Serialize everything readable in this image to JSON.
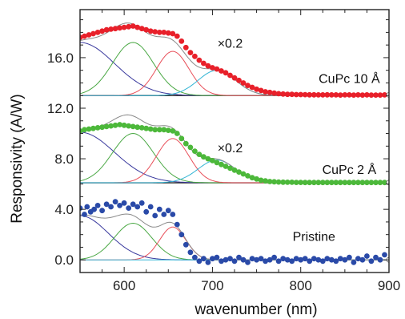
{
  "chart_data": {
    "type": "scatter",
    "xlabel": "wavenumber (nm)",
    "ylabel": "Responsivity (A/W)",
    "xlim": [
      550,
      900
    ],
    "ylim": [
      -1.0,
      19.8
    ],
    "x_ticks": [
      "600",
      "700",
      "800",
      "900"
    ],
    "x_tick_values": [
      600,
      700,
      800,
      900
    ],
    "y_ticks": [
      "0.0",
      "4.0",
      "8.0",
      "12.0",
      "16.0"
    ],
    "y_tick_values": [
      0,
      4,
      8,
      12,
      16
    ],
    "grid": false,
    "annotations": [
      {
        "text": "×0.2",
        "x": 720,
        "y": 16.8
      },
      {
        "text": "×0.2",
        "x": 720,
        "y": 8.5
      },
      {
        "text": "CuPc 10 Å",
        "x": 855,
        "y": 14.0
      },
      {
        "text": "CuPc 2 Å",
        "x": 855,
        "y": 6.8
      },
      {
        "text": "Pristine",
        "x": 815,
        "y": 1.5
      }
    ],
    "panels": [
      {
        "label": "CuPc 10 Å",
        "color": "#e8202a",
        "fit_color": "#8a8a8a",
        "baseline": 13.0,
        "points": [
          [
            550,
            17.6
          ],
          [
            555,
            17.7
          ],
          [
            560,
            17.8
          ],
          [
            565,
            17.9
          ],
          [
            570,
            18.0
          ],
          [
            575,
            18.1
          ],
          [
            580,
            18.2
          ],
          [
            585,
            18.25
          ],
          [
            590,
            18.3
          ],
          [
            595,
            18.35
          ],
          [
            600,
            18.4
          ],
          [
            605,
            18.45
          ],
          [
            610,
            18.5
          ],
          [
            615,
            18.4
          ],
          [
            620,
            18.3
          ],
          [
            625,
            18.2
          ],
          [
            630,
            18.1
          ],
          [
            635,
            18.05
          ],
          [
            640,
            18.0
          ],
          [
            645,
            18.0
          ],
          [
            650,
            17.95
          ],
          [
            655,
            17.9
          ],
          [
            660,
            17.7
          ],
          [
            665,
            17.3
          ],
          [
            670,
            16.8
          ],
          [
            675,
            16.4
          ],
          [
            680,
            16.1
          ],
          [
            685,
            15.8
          ],
          [
            690,
            15.55
          ],
          [
            695,
            15.35
          ],
          [
            700,
            15.2
          ],
          [
            705,
            15.1
          ],
          [
            710,
            14.95
          ],
          [
            715,
            14.8
          ],
          [
            720,
            14.6
          ],
          [
            725,
            14.4
          ],
          [
            730,
            14.2
          ],
          [
            735,
            14.0
          ],
          [
            740,
            13.8
          ],
          [
            745,
            13.65
          ],
          [
            750,
            13.5
          ],
          [
            755,
            13.4
          ],
          [
            760,
            13.3
          ],
          [
            765,
            13.25
          ],
          [
            770,
            13.2
          ],
          [
            775,
            13.15
          ],
          [
            780,
            13.12
          ],
          [
            785,
            13.1
          ],
          [
            790,
            13.1
          ],
          [
            795,
            13.08
          ],
          [
            800,
            13.08
          ],
          [
            805,
            13.07
          ],
          [
            810,
            13.06
          ],
          [
            815,
            13.06
          ],
          [
            820,
            13.05
          ],
          [
            825,
            13.05
          ],
          [
            830,
            13.06
          ],
          [
            835,
            13.05
          ],
          [
            840,
            13.05
          ],
          [
            845,
            13.04
          ],
          [
            850,
            13.05
          ],
          [
            855,
            13.05
          ],
          [
            860,
            13.04
          ],
          [
            865,
            13.05
          ],
          [
            870,
            13.04
          ],
          [
            875,
            13.05
          ],
          [
            880,
            13.04
          ],
          [
            885,
            13.04
          ],
          [
            890,
            13.04
          ],
          [
            895,
            13.05
          ],
          [
            900,
            13.05
          ]
        ],
        "components": [
          {
            "color": "#3a3a9e",
            "center": 550,
            "amplitude": 4.2,
            "width": 55
          },
          {
            "color": "#4aa844",
            "center": 610,
            "amplitude": 4.2,
            "width": 33
          },
          {
            "color": "#e8505a",
            "center": 655,
            "amplitude": 3.5,
            "width": 26
          },
          {
            "color": "#33b5d5",
            "center": 705,
            "amplitude": 2.0,
            "width": 30
          }
        ]
      },
      {
        "label": "CuPc 2 Å",
        "color": "#4cb83a",
        "fit_color": "#8a8a8a",
        "baseline": 6.1,
        "points": [
          [
            550,
            10.2
          ],
          [
            555,
            10.3
          ],
          [
            560,
            10.35
          ],
          [
            565,
            10.4
          ],
          [
            570,
            10.45
          ],
          [
            575,
            10.5
          ],
          [
            580,
            10.55
          ],
          [
            585,
            10.6
          ],
          [
            590,
            10.65
          ],
          [
            595,
            10.7
          ],
          [
            600,
            10.65
          ],
          [
            605,
            10.6
          ],
          [
            610,
            10.55
          ],
          [
            615,
            10.5
          ],
          [
            620,
            10.45
          ],
          [
            625,
            10.4
          ],
          [
            630,
            10.35
          ],
          [
            635,
            10.3
          ],
          [
            640,
            10.3
          ],
          [
            645,
            10.3
          ],
          [
            650,
            10.25
          ],
          [
            655,
            10.2
          ],
          [
            660,
            10.0
          ],
          [
            665,
            9.6
          ],
          [
            670,
            9.2
          ],
          [
            675,
            8.9
          ],
          [
            680,
            8.6
          ],
          [
            685,
            8.35
          ],
          [
            690,
            8.15
          ],
          [
            695,
            8.0
          ],
          [
            700,
            7.85
          ],
          [
            705,
            7.7
          ],
          [
            710,
            7.55
          ],
          [
            715,
            7.4
          ],
          [
            720,
            7.25
          ],
          [
            725,
            7.1
          ],
          [
            730,
            6.95
          ],
          [
            735,
            6.8
          ],
          [
            740,
            6.65
          ],
          [
            745,
            6.5
          ],
          [
            750,
            6.4
          ],
          [
            755,
            6.3
          ],
          [
            760,
            6.25
          ],
          [
            765,
            6.2
          ],
          [
            770,
            6.18
          ],
          [
            775,
            6.16
          ],
          [
            780,
            6.15
          ],
          [
            785,
            6.14
          ],
          [
            790,
            6.14
          ],
          [
            795,
            6.13
          ],
          [
            800,
            6.13
          ],
          [
            805,
            6.12
          ],
          [
            810,
            6.12
          ],
          [
            815,
            6.12
          ],
          [
            820,
            6.12
          ],
          [
            825,
            6.12
          ],
          [
            830,
            6.12
          ],
          [
            835,
            6.12
          ],
          [
            840,
            6.12
          ],
          [
            845,
            6.12
          ],
          [
            850,
            6.12
          ],
          [
            855,
            6.12
          ],
          [
            860,
            6.12
          ],
          [
            865,
            6.12
          ],
          [
            870,
            6.12
          ],
          [
            875,
            6.12
          ],
          [
            880,
            6.12
          ],
          [
            885,
            6.12
          ],
          [
            890,
            6.12
          ],
          [
            895,
            6.12
          ],
          [
            900,
            6.12
          ]
        ],
        "components": [
          {
            "color": "#3a3a9e",
            "center": 550,
            "amplitude": 4.0,
            "width": 55
          },
          {
            "color": "#4aa844",
            "center": 610,
            "amplitude": 3.9,
            "width": 33
          },
          {
            "color": "#e8505a",
            "center": 655,
            "amplitude": 3.5,
            "width": 26
          },
          {
            "color": "#33b5d5",
            "center": 705,
            "amplitude": 1.8,
            "width": 30
          }
        ]
      },
      {
        "label": "Pristine",
        "color": "#2a4aa8",
        "fit_color": "#8a8a8a",
        "baseline": 0.0,
        "points": [
          [
            550,
            4.1
          ],
          [
            555,
            3.6
          ],
          [
            558,
            4.2
          ],
          [
            562,
            3.8
          ],
          [
            566,
            4.0
          ],
          [
            570,
            4.3
          ],
          [
            575,
            3.9
          ],
          [
            580,
            4.4
          ],
          [
            585,
            4.2
          ],
          [
            590,
            4.6
          ],
          [
            595,
            4.3
          ],
          [
            600,
            4.5
          ],
          [
            605,
            4.1
          ],
          [
            610,
            4.4
          ],
          [
            615,
            4.2
          ],
          [
            620,
            4.5
          ],
          [
            625,
            3.8
          ],
          [
            630,
            4.2
          ],
          [
            635,
            3.5
          ],
          [
            640,
            4.0
          ],
          [
            645,
            3.6
          ],
          [
            650,
            3.9
          ],
          [
            655,
            3.6
          ],
          [
            660,
            2.8
          ],
          [
            665,
            2.0
          ],
          [
            670,
            1.2
          ],
          [
            675,
            0.6
          ],
          [
            680,
            0.2
          ],
          [
            685,
            -0.1
          ],
          [
            690,
            0.1
          ],
          [
            695,
            -0.2
          ],
          [
            700,
            0.1
          ],
          [
            705,
            0.2
          ],
          [
            710,
            -0.1
          ],
          [
            715,
            0.0
          ],
          [
            720,
            0.1
          ],
          [
            725,
            -0.1
          ],
          [
            730,
            0.2
          ],
          [
            735,
            0.0
          ],
          [
            740,
            -0.2
          ],
          [
            745,
            0.1
          ],
          [
            750,
            0.0
          ],
          [
            755,
            0.1
          ],
          [
            760,
            -0.1
          ],
          [
            765,
            0.0
          ],
          [
            770,
            0.2
          ],
          [
            775,
            -0.1
          ],
          [
            780,
            0.1
          ],
          [
            785,
            0.0
          ],
          [
            790,
            -0.1
          ],
          [
            795,
            0.1
          ],
          [
            800,
            0.0
          ],
          [
            805,
            0.1
          ],
          [
            810,
            -0.1
          ],
          [
            815,
            0.1
          ],
          [
            820,
            0.0
          ],
          [
            825,
            -0.1
          ],
          [
            830,
            0.1
          ],
          [
            835,
            0.0
          ],
          [
            840,
            -0.1
          ],
          [
            845,
            0.1
          ],
          [
            850,
            0.0
          ],
          [
            855,
            0.2
          ],
          [
            860,
            -0.2
          ],
          [
            865,
            0.1
          ],
          [
            870,
            0.0
          ],
          [
            875,
            0.3
          ],
          [
            880,
            -0.1
          ],
          [
            885,
            0.2
          ],
          [
            890,
            0.0
          ],
          [
            895,
            0.4
          ],
          [
            900,
            0.0
          ]
        ],
        "components": [
          {
            "color": "#3a3a9e",
            "center": 550,
            "amplitude": 3.5,
            "width": 45
          },
          {
            "color": "#4aa844",
            "center": 610,
            "amplitude": 2.9,
            "width": 30
          },
          {
            "color": "#e8505a",
            "center": 655,
            "amplitude": 2.6,
            "width": 21
          },
          {
            "color": "#33b5d5",
            "center": 700,
            "amplitude": 0.0,
            "width": 30
          }
        ]
      }
    ]
  }
}
